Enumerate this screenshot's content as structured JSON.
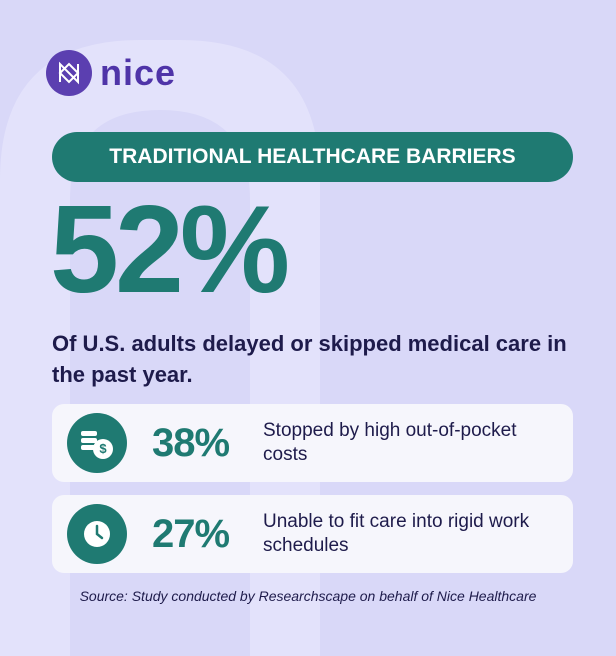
{
  "brand": "nice",
  "banner": "TRADITIONAL HEALTHCARE BARRIERS",
  "headline": {
    "value": "52%",
    "text": "Of U.S. adults delayed or skipped medical care in the past year."
  },
  "stats": [
    {
      "value": "38%",
      "text": "Stopped by high out-of-pocket costs"
    },
    {
      "value": "27%",
      "text": "Unable to fit care into rigid work schedules"
    }
  ],
  "source": "Source: Study conducted by Researchscape on behalf of Nice Healthcare"
}
